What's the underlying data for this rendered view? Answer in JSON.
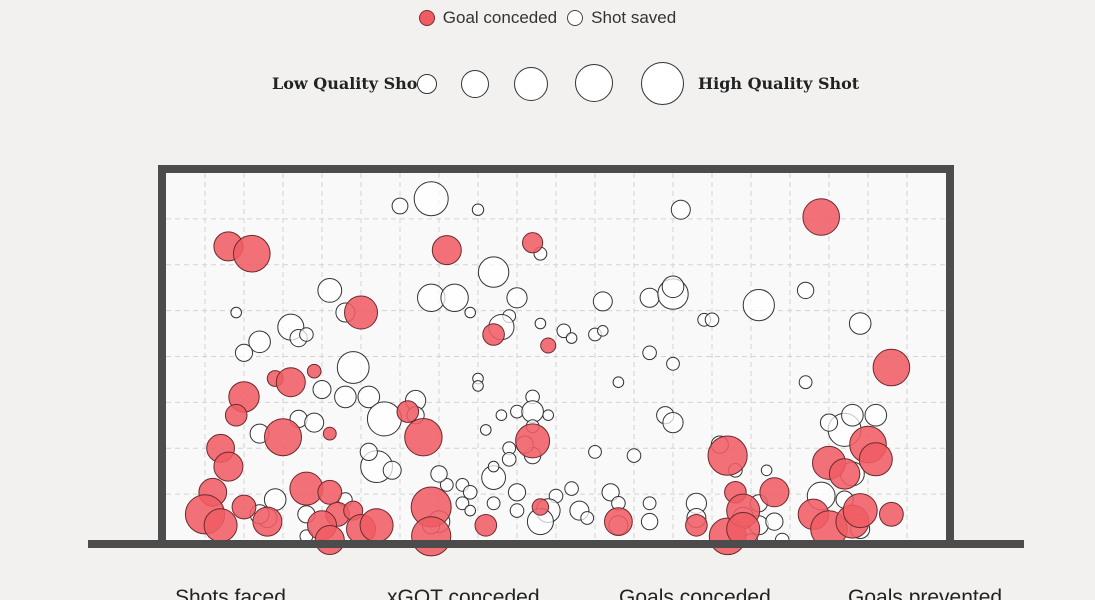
{
  "legend": {
    "goal_label": "Goal conceded",
    "saved_label": "Shot saved",
    "goal_color": "#f05c64",
    "saved_color": "#ffffff"
  },
  "quality_scale": {
    "low_label": "Low Quality Shot",
    "high_label": "High Quality Shot"
  },
  "stats": {
    "shots_faced": "Shots faced",
    "xgot_conceded": "xGOT conceded",
    "goals_conceded": "Goals conceded",
    "goals_prevented": "Goals prevented"
  },
  "chart_data": {
    "type": "scatter",
    "title": "",
    "xlabel": "",
    "ylabel": "",
    "xlim": [
      0,
      1
    ],
    "ylim": [
      0,
      1
    ],
    "grid": true,
    "legend_position": "top-center",
    "series": [
      {
        "name": "Goal conceded",
        "color": "#f05c64",
        "points": [
          {
            "x": 0.08,
            "y": 0.8,
            "q": 0.57
          },
          {
            "x": 0.11,
            "y": 0.78,
            "q": 0.74
          },
          {
            "x": 0.36,
            "y": 0.79,
            "q": 0.57
          },
          {
            "x": 0.47,
            "y": 0.81,
            "q": 0.37
          },
          {
            "x": 0.84,
            "y": 0.88,
            "q": 0.74
          },
          {
            "x": 0.25,
            "y": 0.62,
            "q": 0.66
          },
          {
            "x": 0.42,
            "y": 0.56,
            "q": 0.4
          },
          {
            "x": 0.49,
            "y": 0.53,
            "q": 0.25
          },
          {
            "x": 0.93,
            "y": 0.47,
            "q": 0.74
          },
          {
            "x": 0.14,
            "y": 0.44,
            "q": 0.27
          },
          {
            "x": 0.16,
            "y": 0.43,
            "q": 0.57
          },
          {
            "x": 0.19,
            "y": 0.46,
            "q": 0.22
          },
          {
            "x": 0.1,
            "y": 0.39,
            "q": 0.6
          },
          {
            "x": 0.09,
            "y": 0.34,
            "q": 0.4
          },
          {
            "x": 0.15,
            "y": 0.28,
            "q": 0.75
          },
          {
            "x": 0.21,
            "y": 0.29,
            "q": 0.2
          },
          {
            "x": 0.31,
            "y": 0.35,
            "q": 0.4
          },
          {
            "x": 0.33,
            "y": 0.28,
            "q": 0.76
          },
          {
            "x": 0.47,
            "y": 0.27,
            "q": 0.68
          },
          {
            "x": 0.72,
            "y": 0.23,
            "q": 0.8
          },
          {
            "x": 0.07,
            "y": 0.25,
            "q": 0.54
          },
          {
            "x": 0.08,
            "y": 0.2,
            "q": 0.57
          },
          {
            "x": 0.06,
            "y": 0.13,
            "q": 0.54
          },
          {
            "x": 0.05,
            "y": 0.07,
            "q": 0.8
          },
          {
            "x": 0.07,
            "y": 0.04,
            "q": 0.66
          },
          {
            "x": 0.1,
            "y": 0.09,
            "q": 0.45
          },
          {
            "x": 0.13,
            "y": 0.05,
            "q": 0.57
          },
          {
            "x": 0.18,
            "y": 0.14,
            "q": 0.66
          },
          {
            "x": 0.21,
            "y": 0.13,
            "q": 0.45
          },
          {
            "x": 0.22,
            "y": 0.07,
            "q": 0.45
          },
          {
            "x": 0.2,
            "y": 0.04,
            "q": 0.57
          },
          {
            "x": 0.21,
            "y": 0.0,
            "q": 0.57
          },
          {
            "x": 0.24,
            "y": 0.08,
            "q": 0.34
          },
          {
            "x": 0.25,
            "y": 0.03,
            "q": 0.57
          },
          {
            "x": 0.27,
            "y": 0.04,
            "q": 0.66
          },
          {
            "x": 0.34,
            "y": 0.09,
            "q": 0.82
          },
          {
            "x": 0.34,
            "y": 0.01,
            "q": 0.8
          },
          {
            "x": 0.41,
            "y": 0.04,
            "q": 0.4
          },
          {
            "x": 0.48,
            "y": 0.09,
            "q": 0.28
          },
          {
            "x": 0.58,
            "y": 0.05,
            "q": 0.54
          },
          {
            "x": 0.68,
            "y": 0.04,
            "q": 0.4
          },
          {
            "x": 0.72,
            "y": 0.01,
            "q": 0.74
          },
          {
            "x": 0.73,
            "y": 0.13,
            "q": 0.4
          },
          {
            "x": 0.74,
            "y": 0.08,
            "q": 0.66
          },
          {
            "x": 0.74,
            "y": 0.03,
            "q": 0.66
          },
          {
            "x": 0.78,
            "y": 0.13,
            "q": 0.57
          },
          {
            "x": 0.83,
            "y": 0.07,
            "q": 0.6
          },
          {
            "x": 0.85,
            "y": 0.21,
            "q": 0.66
          },
          {
            "x": 0.87,
            "y": 0.18,
            "q": 0.6
          },
          {
            "x": 0.9,
            "y": 0.26,
            "q": 0.74
          },
          {
            "x": 0.91,
            "y": 0.22,
            "q": 0.66
          },
          {
            "x": 0.85,
            "y": 0.03,
            "q": 0.74
          },
          {
            "x": 0.88,
            "y": 0.05,
            "q": 0.66
          },
          {
            "x": 0.89,
            "y": 0.08,
            "q": 0.68
          },
          {
            "x": 0.93,
            "y": 0.07,
            "q": 0.45
          }
        ]
      },
      {
        "name": "Shot saved",
        "color": "#ffffff",
        "points": [
          {
            "x": 0.34,
            "y": 0.93,
            "q": 0.68
          },
          {
            "x": 0.3,
            "y": 0.91,
            "q": 0.27
          },
          {
            "x": 0.4,
            "y": 0.9,
            "q": 0.17
          },
          {
            "x": 0.48,
            "y": 0.78,
            "q": 0.2
          },
          {
            "x": 0.66,
            "y": 0.9,
            "q": 0.34
          },
          {
            "x": 0.42,
            "y": 0.73,
            "q": 0.6
          },
          {
            "x": 0.21,
            "y": 0.68,
            "q": 0.45
          },
          {
            "x": 0.34,
            "y": 0.66,
            "q": 0.53
          },
          {
            "x": 0.37,
            "y": 0.66,
            "q": 0.53
          },
          {
            "x": 0.45,
            "y": 0.66,
            "q": 0.37
          },
          {
            "x": 0.23,
            "y": 0.62,
            "q": 0.34
          },
          {
            "x": 0.56,
            "y": 0.65,
            "q": 0.34
          },
          {
            "x": 0.62,
            "y": 0.66,
            "q": 0.34
          },
          {
            "x": 0.65,
            "y": 0.67,
            "q": 0.6
          },
          {
            "x": 0.65,
            "y": 0.69,
            "q": 0.4
          },
          {
            "x": 0.76,
            "y": 0.64,
            "q": 0.62
          },
          {
            "x": 0.82,
            "y": 0.68,
            "q": 0.28
          },
          {
            "x": 0.16,
            "y": 0.58,
            "q": 0.5
          },
          {
            "x": 0.17,
            "y": 0.55,
            "q": 0.3
          },
          {
            "x": 0.12,
            "y": 0.54,
            "q": 0.4
          },
          {
            "x": 0.44,
            "y": 0.61,
            "q": 0.2
          },
          {
            "x": 0.43,
            "y": 0.58,
            "q": 0.48
          },
          {
            "x": 0.48,
            "y": 0.59,
            "q": 0.15
          },
          {
            "x": 0.51,
            "y": 0.57,
            "q": 0.22
          },
          {
            "x": 0.52,
            "y": 0.55,
            "q": 0.15
          },
          {
            "x": 0.55,
            "y": 0.56,
            "q": 0.2
          },
          {
            "x": 0.56,
            "y": 0.57,
            "q": 0.15
          },
          {
            "x": 0.69,
            "y": 0.6,
            "q": 0.2
          },
          {
            "x": 0.7,
            "y": 0.6,
            "q": 0.22
          },
          {
            "x": 0.89,
            "y": 0.59,
            "q": 0.4
          },
          {
            "x": 0.24,
            "y": 0.47,
            "q": 0.63
          },
          {
            "x": 0.4,
            "y": 0.44,
            "q": 0.15
          },
          {
            "x": 0.4,
            "y": 0.42,
            "q": 0.15
          },
          {
            "x": 0.58,
            "y": 0.43,
            "q": 0.15
          },
          {
            "x": 0.65,
            "y": 0.48,
            "q": 0.2
          },
          {
            "x": 0.82,
            "y": 0.43,
            "q": 0.2
          },
          {
            "x": 0.2,
            "y": 0.41,
            "q": 0.32
          },
          {
            "x": 0.23,
            "y": 0.39,
            "q": 0.4
          },
          {
            "x": 0.26,
            "y": 0.39,
            "q": 0.4
          },
          {
            "x": 0.32,
            "y": 0.38,
            "q": 0.37
          },
          {
            "x": 0.28,
            "y": 0.33,
            "q": 0.68
          },
          {
            "x": 0.17,
            "y": 0.33,
            "q": 0.3
          },
          {
            "x": 0.19,
            "y": 0.32,
            "q": 0.34
          },
          {
            "x": 0.32,
            "y": 0.34,
            "q": 0.3
          },
          {
            "x": 0.47,
            "y": 0.39,
            "q": 0.22
          },
          {
            "x": 0.45,
            "y": 0.35,
            "q": 0.2
          },
          {
            "x": 0.47,
            "y": 0.35,
            "q": 0.4
          },
          {
            "x": 0.49,
            "y": 0.34,
            "q": 0.15
          },
          {
            "x": 0.47,
            "y": 0.31,
            "q": 0.2
          },
          {
            "x": 0.43,
            "y": 0.34,
            "q": 0.15
          },
          {
            "x": 0.64,
            "y": 0.34,
            "q": 0.3
          },
          {
            "x": 0.65,
            "y": 0.32,
            "q": 0.37
          },
          {
            "x": 0.87,
            "y": 0.3,
            "q": 0.66
          },
          {
            "x": 0.88,
            "y": 0.34,
            "q": 0.4
          },
          {
            "x": 0.91,
            "y": 0.34,
            "q": 0.4
          },
          {
            "x": 0.85,
            "y": 0.32,
            "q": 0.3
          },
          {
            "x": 0.12,
            "y": 0.29,
            "q": 0.34
          },
          {
            "x": 0.27,
            "y": 0.2,
            "q": 0.63
          },
          {
            "x": 0.26,
            "y": 0.24,
            "q": 0.3
          },
          {
            "x": 0.29,
            "y": 0.19,
            "q": 0.32
          },
          {
            "x": 0.42,
            "y": 0.17,
            "q": 0.45
          },
          {
            "x": 0.47,
            "y": 0.23,
            "q": 0.28
          },
          {
            "x": 0.46,
            "y": 0.26,
            "q": 0.3
          },
          {
            "x": 0.44,
            "y": 0.25,
            "q": 0.2
          },
          {
            "x": 0.44,
            "y": 0.22,
            "q": 0.22
          },
          {
            "x": 0.42,
            "y": 0.2,
            "q": 0.15
          },
          {
            "x": 0.55,
            "y": 0.24,
            "q": 0.2
          },
          {
            "x": 0.6,
            "y": 0.23,
            "q": 0.22
          },
          {
            "x": 0.71,
            "y": 0.26,
            "q": 0.3
          },
          {
            "x": 0.77,
            "y": 0.19,
            "q": 0.15
          },
          {
            "x": 0.73,
            "y": 0.19,
            "q": 0.22
          },
          {
            "x": 0.36,
            "y": 0.15,
            "q": 0.2
          },
          {
            "x": 0.38,
            "y": 0.15,
            "q": 0.2
          },
          {
            "x": 0.35,
            "y": 0.18,
            "q": 0.28
          },
          {
            "x": 0.39,
            "y": 0.13,
            "q": 0.22
          },
          {
            "x": 0.45,
            "y": 0.13,
            "q": 0.3
          },
          {
            "x": 0.5,
            "y": 0.12,
            "q": 0.22
          },
          {
            "x": 0.52,
            "y": 0.14,
            "q": 0.22
          },
          {
            "x": 0.53,
            "y": 0.08,
            "q": 0.34
          },
          {
            "x": 0.54,
            "y": 0.06,
            "q": 0.2
          },
          {
            "x": 0.49,
            "y": 0.08,
            "q": 0.45
          },
          {
            "x": 0.48,
            "y": 0.05,
            "q": 0.5
          },
          {
            "x": 0.45,
            "y": 0.08,
            "q": 0.22
          },
          {
            "x": 0.42,
            "y": 0.1,
            "q": 0.2
          },
          {
            "x": 0.38,
            "y": 0.1,
            "q": 0.2
          },
          {
            "x": 0.57,
            "y": 0.13,
            "q": 0.3
          },
          {
            "x": 0.58,
            "y": 0.04,
            "q": 0.34
          },
          {
            "x": 0.58,
            "y": 0.1,
            "q": 0.22
          },
          {
            "x": 0.62,
            "y": 0.1,
            "q": 0.2
          },
          {
            "x": 0.62,
            "y": 0.05,
            "q": 0.28
          },
          {
            "x": 0.68,
            "y": 0.1,
            "q": 0.37
          },
          {
            "x": 0.68,
            "y": 0.06,
            "q": 0.34
          },
          {
            "x": 0.76,
            "y": 0.04,
            "q": 0.34
          },
          {
            "x": 0.78,
            "y": 0.05,
            "q": 0.3
          },
          {
            "x": 0.74,
            "y": 0.06,
            "q": 0.4
          },
          {
            "x": 0.76,
            "y": 0.1,
            "q": 0.3
          },
          {
            "x": 0.84,
            "y": 0.12,
            "q": 0.54
          },
          {
            "x": 0.87,
            "y": 0.11,
            "q": 0.3
          },
          {
            "x": 0.88,
            "y": 0.18,
            "q": 0.45
          },
          {
            "x": 0.89,
            "y": 0.03,
            "q": 0.34
          },
          {
            "x": 0.75,
            "y": 0.0,
            "q": 0.2
          },
          {
            "x": 0.79,
            "y": 0.0,
            "q": 0.22
          },
          {
            "x": 0.13,
            "y": 0.06,
            "q": 0.34
          },
          {
            "x": 0.14,
            "y": 0.11,
            "q": 0.4
          },
          {
            "x": 0.12,
            "y": 0.07,
            "q": 0.34
          },
          {
            "x": 0.18,
            "y": 0.07,
            "q": 0.3
          },
          {
            "x": 0.23,
            "y": 0.11,
            "q": 0.22
          },
          {
            "x": 0.18,
            "y": 0.01,
            "q": 0.2
          },
          {
            "x": 0.35,
            "y": 0.05,
            "q": 0.4
          },
          {
            "x": 0.34,
            "y": 0.04,
            "q": 0.3
          },
          {
            "x": 0.1,
            "y": 0.51,
            "q": 0.3
          },
          {
            "x": 0.09,
            "y": 0.62,
            "q": 0.15
          },
          {
            "x": 0.18,
            "y": 0.56,
            "q": 0.22
          },
          {
            "x": 0.39,
            "y": 0.62,
            "q": 0.15
          },
          {
            "x": 0.62,
            "y": 0.51,
            "q": 0.22
          },
          {
            "x": 0.39,
            "y": 0.08,
            "q": 0.15
          },
          {
            "x": 0.41,
            "y": 0.3,
            "q": 0.15
          }
        ]
      }
    ]
  }
}
